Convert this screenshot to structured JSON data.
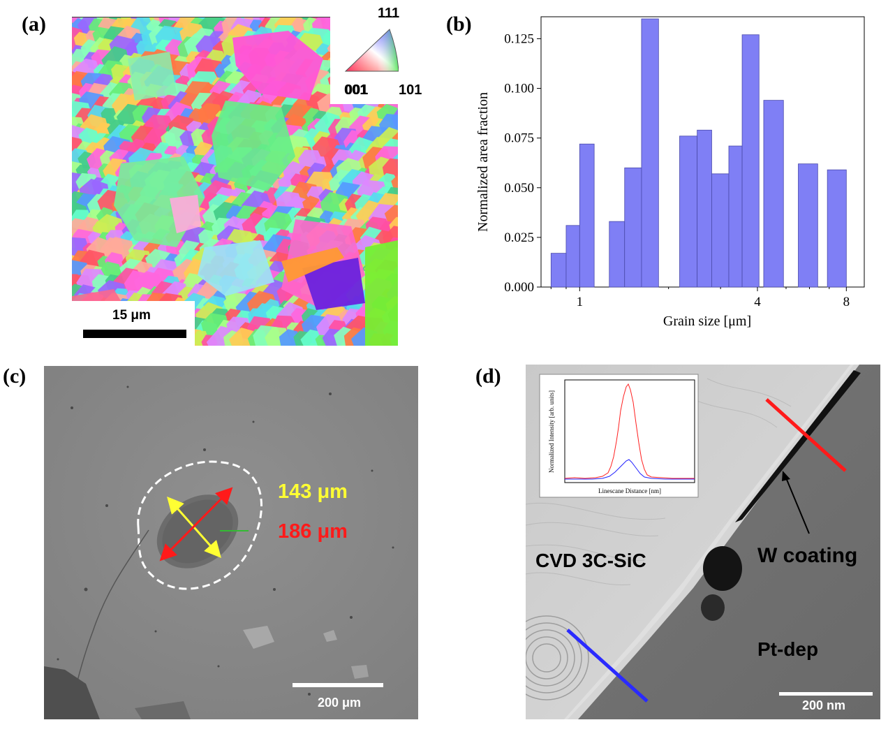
{
  "panels": {
    "a": {
      "label": "(a)",
      "scale_bar": "15 μm",
      "ipf_key": {
        "top": "111",
        "left": "001",
        "right": "101"
      }
    },
    "b": {
      "label": "(b)"
    },
    "c": {
      "label": "(c)",
      "measure_yellow": "143 μm",
      "measure_red": "186 μm",
      "scale_bar": "200 μm"
    },
    "d": {
      "label": "(d)",
      "label_sic": "CVD 3C-SiC",
      "label_w": "W coating",
      "label_pt": "Pt-dep",
      "scale_bar": "200 nm",
      "inset": {
        "ylabel": "Normalized Intensity [arb. units]",
        "xlabel": "Linescane Distance [nm]"
      }
    }
  },
  "chart_data": {
    "type": "bar",
    "title": "",
    "xlabel": "Grain size [μm]",
    "ylabel": "Normalized area fraction",
    "xscale": "log",
    "xticks": [
      1,
      4,
      8
    ],
    "xtick_labels": [
      "1",
      "4",
      "8"
    ],
    "ylim": [
      0,
      0.135
    ],
    "yticks": [
      0.0,
      0.025,
      0.05,
      0.075,
      0.1,
      0.125
    ],
    "ytick_labels": [
      "0.000",
      "0.025",
      "0.050",
      "0.075",
      "0.100",
      "0.125"
    ],
    "bar_color": "#7f7ff5",
    "bins": [
      {
        "x0": 0.8,
        "x1": 0.9,
        "value": 0.017
      },
      {
        "x0": 0.9,
        "x1": 1.0,
        "value": 0.031
      },
      {
        "x0": 1.0,
        "x1": 1.12,
        "value": 0.072
      },
      {
        "x0": 1.26,
        "x1": 1.42,
        "value": 0.033
      },
      {
        "x0": 1.42,
        "x1": 1.62,
        "value": 0.06
      },
      {
        "x0": 1.62,
        "x1": 1.85,
        "value": 0.135
      },
      {
        "x0": 2.18,
        "x1": 2.5,
        "value": 0.076
      },
      {
        "x0": 2.5,
        "x1": 2.8,
        "value": 0.079
      },
      {
        "x0": 2.8,
        "x1": 3.2,
        "value": 0.057
      },
      {
        "x0": 3.2,
        "x1": 3.55,
        "value": 0.071
      },
      {
        "x0": 3.55,
        "x1": 4.05,
        "value": 0.127
      },
      {
        "x0": 4.2,
        "x1": 4.9,
        "value": 0.094
      },
      {
        "x0": 5.5,
        "x1": 6.4,
        "value": 0.062
      },
      {
        "x0": 6.9,
        "x1": 8.0,
        "value": 0.059
      }
    ]
  }
}
